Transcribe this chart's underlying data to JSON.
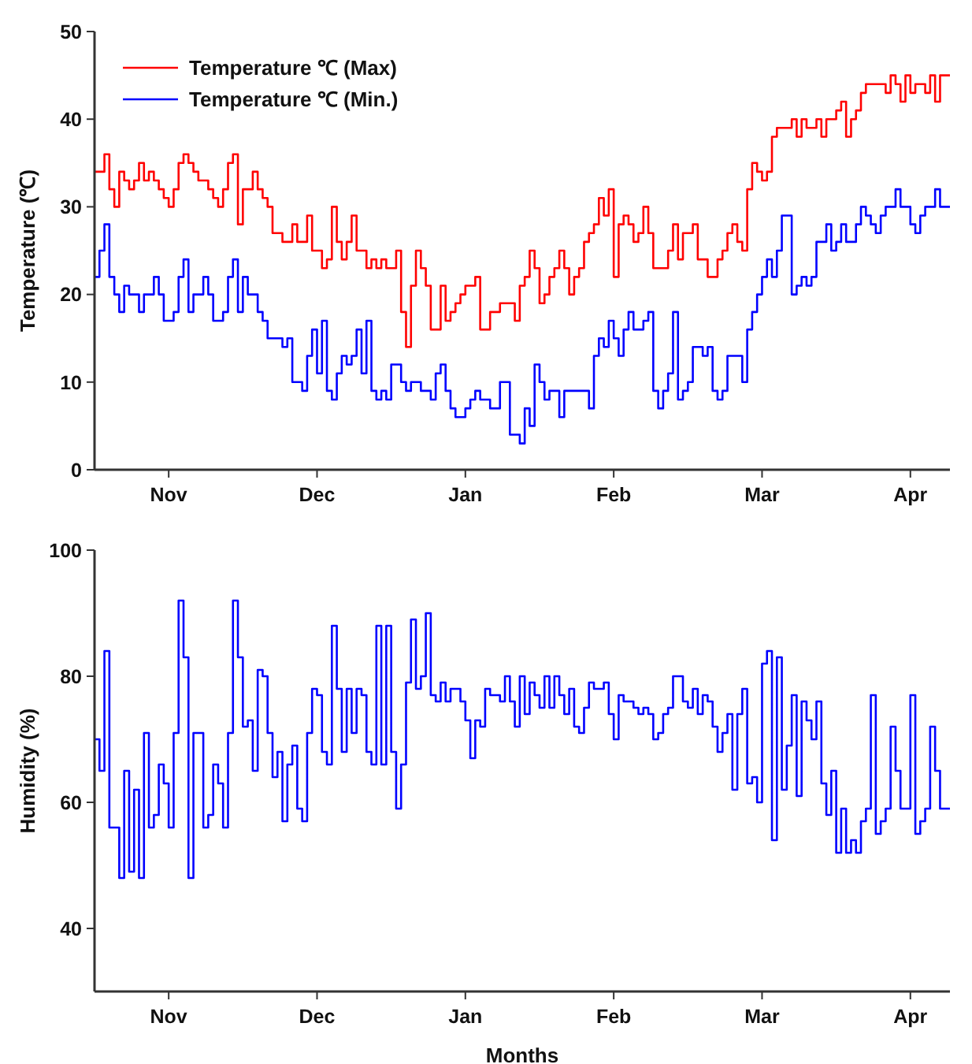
{
  "chart_data": [
    {
      "type": "step",
      "ylabel": "Temperature (℃)",
      "categories": [
        null,
        null,
        null,
        null,
        null,
        null,
        null,
        null,
        null,
        null,
        null,
        null,
        null,
        null,
        null,
        "Nov",
        null,
        null,
        null,
        null,
        null,
        null,
        null,
        null,
        null,
        null,
        null,
        null,
        null,
        null,
        null,
        null,
        null,
        null,
        null,
        null,
        null,
        null,
        null,
        null,
        null,
        null,
        null,
        null,
        null,
        "Dec",
        null,
        null,
        null,
        null,
        null,
        null,
        null,
        null,
        null,
        null,
        null,
        null,
        null,
        null,
        null,
        null,
        null,
        null,
        null,
        null,
        null,
        null,
        null,
        null,
        null,
        null,
        null,
        null,
        null,
        "Jan",
        null,
        null,
        null,
        null,
        null,
        null,
        null,
        null,
        null,
        null,
        null,
        null,
        null,
        null,
        null,
        null,
        null,
        null,
        null,
        null,
        null,
        null,
        null,
        null,
        null,
        null,
        null,
        null,
        null,
        "Feb",
        null,
        null,
        null,
        null,
        null,
        null,
        null,
        null,
        null,
        null,
        null,
        null,
        null,
        null,
        null,
        null,
        null,
        null,
        null,
        null,
        null,
        null,
        null,
        null,
        null,
        null,
        null,
        null,
        null,
        "Mar",
        null,
        null,
        null,
        null,
        null,
        null,
        null,
        null,
        null,
        null,
        null,
        null,
        null,
        null,
        null,
        null,
        null,
        null,
        null,
        null,
        null,
        null,
        null,
        null,
        null,
        null,
        null,
        null,
        null,
        "Apr",
        null,
        null,
        null,
        null,
        null,
        null,
        null,
        null
      ],
      "ylim": [
        0,
        50
      ],
      "yticks": [
        0,
        10,
        20,
        30,
        40,
        50
      ],
      "legend": "top left",
      "grid": false,
      "series": [
        {
          "name": "Temperature ℃ (Max)",
          "color": "#ff0000",
          "values": [
            34,
            34,
            36,
            32,
            30,
            34,
            33,
            32,
            33,
            35,
            33,
            34,
            33,
            32,
            31,
            30,
            32,
            35,
            36,
            35,
            34,
            33,
            33,
            32,
            31,
            30,
            32,
            35,
            36,
            28,
            32,
            32,
            34,
            32,
            31,
            30,
            27,
            27,
            26,
            26,
            28,
            26,
            26,
            29,
            25,
            25,
            23,
            24,
            30,
            26,
            24,
            26,
            29,
            25,
            25,
            23,
            24,
            23,
            24,
            23,
            23,
            25,
            18,
            14,
            21,
            25,
            23,
            21,
            16,
            16,
            21,
            17,
            18,
            19,
            20,
            21,
            21,
            22,
            16,
            16,
            18,
            18,
            19,
            19,
            19,
            17,
            21,
            22,
            25,
            23,
            19,
            20,
            22,
            23,
            25,
            23,
            20,
            22,
            23,
            26,
            27,
            28,
            31,
            29,
            32,
            22,
            28,
            29,
            28,
            26,
            27,
            30,
            27,
            23,
            23,
            23,
            25,
            28,
            24,
            27,
            27,
            28,
            24,
            24,
            22,
            22,
            24,
            25,
            27,
            28,
            26,
            25,
            32,
            35,
            34,
            33,
            34,
            38,
            39,
            39,
            39,
            40,
            38,
            40,
            39,
            39,
            40,
            38,
            40,
            40,
            41,
            42,
            38,
            40,
            41,
            43,
            44,
            44,
            44,
            44,
            43,
            45,
            44,
            42,
            45,
            43,
            44,
            44,
            43,
            45,
            42,
            45,
            45,
            45
          ]
        },
        {
          "name": "Temperature ℃ (Min.)",
          "color": "#0000ff",
          "values": [
            22,
            25,
            28,
            22,
            20,
            18,
            21,
            20,
            20,
            18,
            20,
            20,
            22,
            20,
            17,
            17,
            18,
            22,
            24,
            18,
            20,
            20,
            22,
            20,
            17,
            17,
            18,
            22,
            24,
            18,
            22,
            20,
            20,
            18,
            17,
            15,
            15,
            15,
            14,
            15,
            10,
            10,
            9,
            13,
            16,
            11,
            17,
            9,
            8,
            11,
            13,
            12,
            13,
            16,
            11,
            17,
            9,
            8,
            9,
            8,
            12,
            12,
            10,
            9,
            10,
            10,
            9,
            9,
            8,
            11,
            12,
            9,
            7,
            6,
            6,
            7,
            8,
            9,
            8,
            8,
            7,
            7,
            10,
            10,
            4,
            4,
            3,
            7,
            5,
            12,
            10,
            8,
            9,
            9,
            6,
            9,
            9,
            9,
            9,
            9,
            7,
            13,
            15,
            14,
            17,
            15,
            13,
            16,
            18,
            16,
            16,
            17,
            18,
            9,
            7,
            9,
            11,
            18,
            8,
            9,
            10,
            14,
            14,
            13,
            14,
            9,
            8,
            9,
            13,
            13,
            13,
            10,
            16,
            18,
            20,
            22,
            24,
            22,
            25,
            29,
            29,
            20,
            21,
            22,
            21,
            22,
            26,
            26,
            28,
            25,
            26,
            28,
            26,
            26,
            28,
            30,
            29,
            28,
            27,
            29,
            30,
            30,
            32,
            30,
            30,
            28,
            27,
            29,
            30,
            30,
            32,
            30,
            30,
            30
          ]
        }
      ]
    },
    {
      "type": "step",
      "xlabel": "Months",
      "ylabel": "Humidity (%)",
      "categories": [
        null,
        null,
        null,
        null,
        null,
        null,
        null,
        null,
        null,
        null,
        null,
        null,
        null,
        null,
        null,
        "Nov",
        null,
        null,
        null,
        null,
        null,
        null,
        null,
        null,
        null,
        null,
        null,
        null,
        null,
        null,
        null,
        null,
        null,
        null,
        null,
        null,
        null,
        null,
        null,
        null,
        null,
        null,
        null,
        null,
        null,
        "Dec",
        null,
        null,
        null,
        null,
        null,
        null,
        null,
        null,
        null,
        null,
        null,
        null,
        null,
        null,
        null,
        null,
        null,
        null,
        null,
        null,
        null,
        null,
        null,
        null,
        null,
        null,
        null,
        null,
        null,
        "Jan",
        null,
        null,
        null,
        null,
        null,
        null,
        null,
        null,
        null,
        null,
        null,
        null,
        null,
        null,
        null,
        null,
        null,
        null,
        null,
        null,
        null,
        null,
        null,
        null,
        null,
        null,
        null,
        null,
        null,
        "Feb",
        null,
        null,
        null,
        null,
        null,
        null,
        null,
        null,
        null,
        null,
        null,
        null,
        null,
        null,
        null,
        null,
        null,
        null,
        null,
        null,
        null,
        null,
        null,
        null,
        null,
        null,
        null,
        null,
        null,
        "Mar",
        null,
        null,
        null,
        null,
        null,
        null,
        null,
        null,
        null,
        null,
        null,
        null,
        null,
        null,
        null,
        null,
        null,
        null,
        null,
        null,
        null,
        null,
        null,
        null,
        null,
        null,
        null,
        null,
        null,
        "Apr",
        null,
        null,
        null,
        null,
        null,
        null,
        null,
        null
      ],
      "ylim": [
        30,
        100
      ],
      "yticks": [
        40,
        60,
        80,
        100
      ],
      "grid": false,
      "series": [
        {
          "color": "#0000ff",
          "values": [
            70,
            65,
            84,
            56,
            56,
            48,
            65,
            49,
            62,
            48,
            71,
            56,
            58,
            66,
            63,
            56,
            71,
            92,
            83,
            48,
            71,
            71,
            56,
            58,
            66,
            63,
            56,
            71,
            92,
            83,
            72,
            73,
            65,
            81,
            80,
            71,
            64,
            68,
            57,
            66,
            69,
            59,
            57,
            71,
            78,
            77,
            68,
            66,
            88,
            78,
            68,
            78,
            71,
            78,
            77,
            68,
            66,
            88,
            66,
            88,
            68,
            59,
            66,
            79,
            89,
            78,
            80,
            90,
            77,
            76,
            79,
            76,
            78,
            78,
            76,
            73,
            67,
            73,
            72,
            78,
            77,
            77,
            76,
            80,
            76,
            72,
            80,
            74,
            79,
            77,
            75,
            80,
            75,
            80,
            77,
            74,
            78,
            72,
            71,
            75,
            79,
            78,
            78,
            79,
            74,
            70,
            77,
            76,
            76,
            75,
            74,
            75,
            74,
            70,
            71,
            74,
            75,
            80,
            80,
            76,
            75,
            78,
            74,
            77,
            76,
            72,
            68,
            71,
            74,
            62,
            74,
            78,
            63,
            64,
            60,
            82,
            84,
            54,
            83,
            62,
            69,
            77,
            61,
            76,
            73,
            70,
            76,
            63,
            58,
            65,
            52,
            59,
            52,
            54,
            52,
            57,
            59,
            77,
            55,
            57,
            59,
            72,
            65,
            59,
            59,
            77,
            55,
            57,
            59,
            72,
            65,
            59,
            59,
            59
          ]
        }
      ]
    }
  ]
}
